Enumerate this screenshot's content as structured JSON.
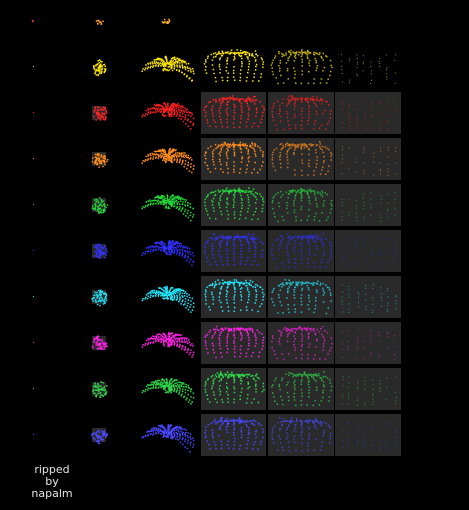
{
  "sheet": {
    "credit": {
      "line1": "ripped",
      "line2": "by",
      "line3": "napalm"
    },
    "background": "#000000",
    "panel_color": "#2a2a2a",
    "top_row_colors": [
      "#e04020",
      "#ff9a30",
      "#ffb030"
    ],
    "rows": [
      {
        "name": "yellow",
        "color": "#ffe600"
      },
      {
        "name": "red",
        "color": "#ff2020"
      },
      {
        "name": "orange",
        "color": "#ff8c1a"
      },
      {
        "name": "green",
        "color": "#22d63a"
      },
      {
        "name": "blue",
        "color": "#3030ff"
      },
      {
        "name": "cyan",
        "color": "#20e8ff"
      },
      {
        "name": "magenta",
        "color": "#ff20e6"
      },
      {
        "name": "green",
        "color": "#2ed84a"
      },
      {
        "name": "blue",
        "color": "#4848ff"
      }
    ],
    "frame_kinds": [
      "spark",
      "burst",
      "bloom",
      "willow",
      "droop",
      "fade"
    ]
  }
}
